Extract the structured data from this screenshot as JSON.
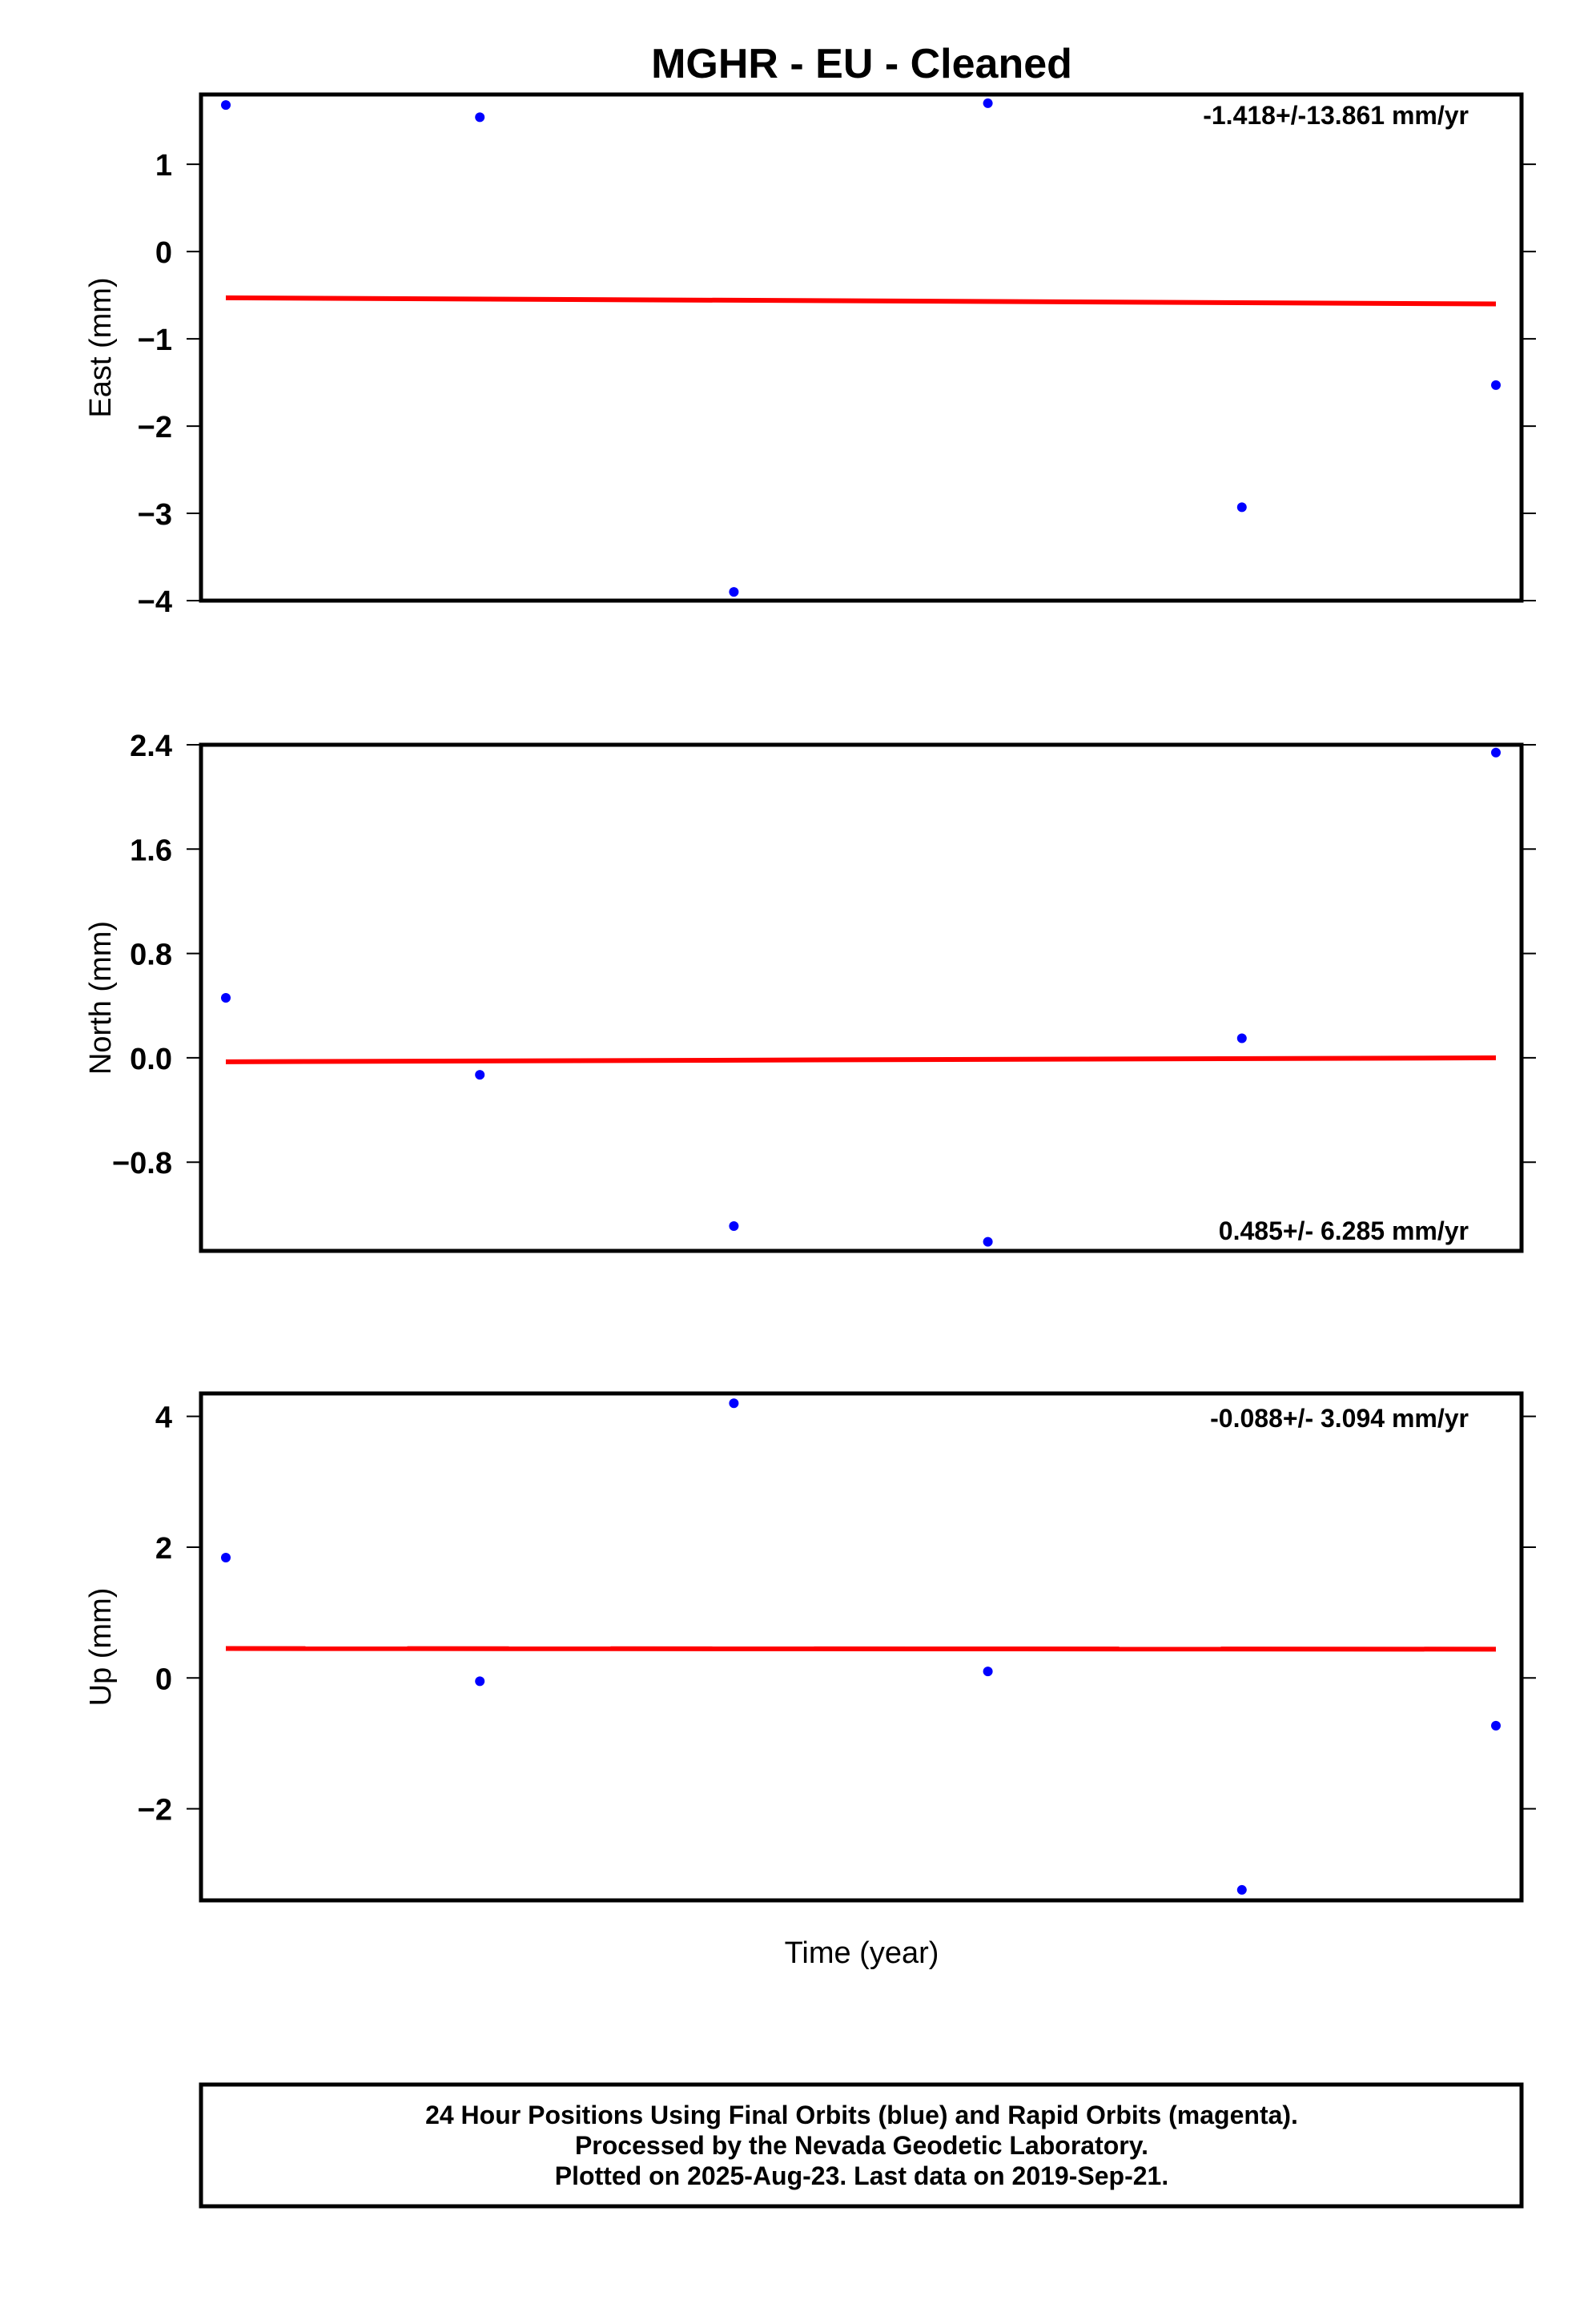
{
  "title": "MGHR  - EU - Cleaned",
  "xlabel": "Time (year)",
  "colors": {
    "points": "#0000ff",
    "fit": "#ff0000",
    "axes": "#000000"
  },
  "footer": {
    "line1": "24 Hour Positions Using Final Orbits (blue) and Rapid Orbits (magenta).",
    "line2": "Processed by the Nevada Geodetic Laboratory.",
    "line3": "Plotted on 2025-Aug-23. Last data on 2019-Sep-21."
  },
  "chart_data": [
    {
      "type": "scatter",
      "ylabel": "East (mm)",
      "rate_label": "-1.418+/-13.861 mm/yr",
      "ylim": [
        -4.0,
        1.8
      ],
      "yticks": [
        1,
        0,
        -1,
        -2,
        -3,
        -4
      ],
      "ytick_labels": [
        "1",
        "0",
        "−1",
        "−2",
        "−3",
        "−4"
      ],
      "x": [
        1,
        2,
        3,
        4,
        5,
        6
      ],
      "values": [
        1.68,
        1.54,
        -3.9,
        1.7,
        -2.93,
        -1.53
      ],
      "fit": [
        -0.53,
        -0.6
      ]
    },
    {
      "type": "scatter",
      "ylabel": "North (mm)",
      "rate_label": "0.485+/- 6.285 mm/yr",
      "ylim": [
        -1.48,
        2.4
      ],
      "yticks": [
        2.4,
        1.6,
        0.8,
        0.0,
        -0.8
      ],
      "ytick_labels": [
        "2.4",
        "1.6",
        "0.8",
        "0.0",
        "−0.8"
      ],
      "x": [
        1,
        2,
        3,
        4,
        5,
        6
      ],
      "values": [
        0.46,
        -0.13,
        -1.29,
        -1.41,
        0.15,
        2.34
      ],
      "fit": [
        -0.03,
        0.0
      ]
    },
    {
      "type": "scatter",
      "ylabel": "Up (mm)",
      "rate_label": "-0.088+/- 3.094 mm/yr",
      "ylim": [
        -3.4,
        4.35
      ],
      "yticks": [
        4,
        2,
        0,
        -2
      ],
      "ytick_labels": [
        "4",
        "2",
        "0",
        "−2"
      ],
      "x": [
        1,
        2,
        3,
        4,
        5,
        6
      ],
      "values": [
        1.84,
        -0.05,
        4.2,
        0.1,
        -3.24,
        -0.73
      ],
      "fit": [
        0.45,
        0.44
      ]
    }
  ]
}
